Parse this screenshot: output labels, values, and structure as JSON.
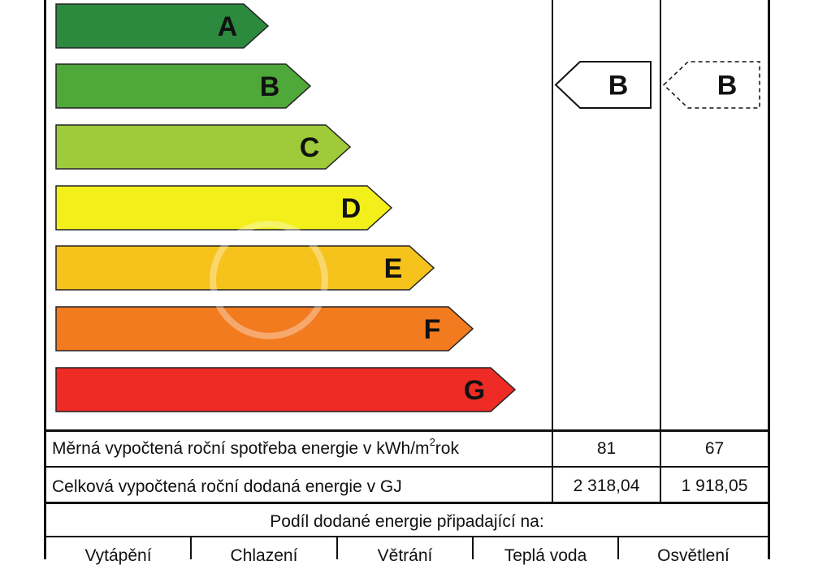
{
  "classes": [
    {
      "letter": "A",
      "color": "#2b8a3e"
    },
    {
      "letter": "B",
      "color": "#4fa83a"
    },
    {
      "letter": "C",
      "color": "#9fcb3a"
    },
    {
      "letter": "D",
      "color": "#f2ef1b"
    },
    {
      "letter": "E",
      "color": "#f6c21c"
    },
    {
      "letter": "F",
      "color": "#f27a1f"
    },
    {
      "letter": "G",
      "color": "#ee2b24"
    }
  ],
  "ratings": {
    "current": "B",
    "proposed": "B"
  },
  "rows": {
    "specific": {
      "label_main": "Měrná vypočtená roční spotřeba energie v kWh/m",
      "label_sup": "2",
      "label_tail": "rok",
      "value_1": "81",
      "value_2": "67"
    },
    "total": {
      "label": "Celková vypočtená roční dodaná energie v GJ",
      "value_1": "2 318,04",
      "value_2": "1 918,05"
    }
  },
  "share": {
    "title": "Podíl dodané energie připadající na:",
    "columns": [
      "Vytápění",
      "Chlazení",
      "Větrání",
      "Teplá voda",
      "Osvětlení"
    ]
  }
}
